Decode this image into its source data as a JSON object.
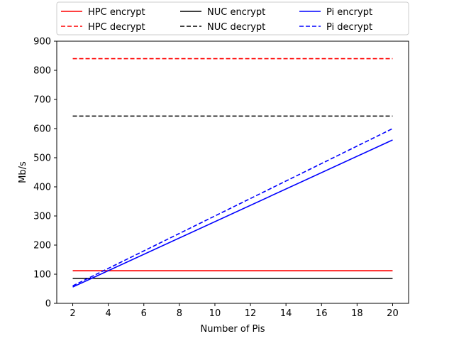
{
  "chart_data": {
    "type": "line",
    "xlabel": "Number of Pis",
    "ylabel": "Mb/s",
    "xlim": [
      1.1,
      20.9
    ],
    "ylim": [
      0,
      900
    ],
    "xticks": [
      2,
      4,
      6,
      8,
      10,
      12,
      14,
      16,
      18,
      20
    ],
    "yticks": [
      0,
      100,
      200,
      300,
      400,
      500,
      600,
      700,
      800,
      900
    ],
    "grid": false,
    "legend_position": "top, outside plot, 3 columns",
    "series": [
      {
        "name": "HPC encrypt",
        "color": "#ff0000",
        "dash": "solid",
        "x": [
          2,
          20
        ],
        "y": [
          112,
          112
        ]
      },
      {
        "name": "HPC decrypt",
        "color": "#ff0000",
        "dash": "dashed",
        "x": [
          2,
          20
        ],
        "y": [
          840,
          840
        ]
      },
      {
        "name": "NUC encrypt",
        "color": "#000000",
        "dash": "solid",
        "x": [
          2,
          20
        ],
        "y": [
          86,
          86
        ]
      },
      {
        "name": "NUC decrypt",
        "color": "#000000",
        "dash": "dashed",
        "x": [
          2,
          20
        ],
        "y": [
          643,
          643
        ]
      },
      {
        "name": "Pi encrypt",
        "color": "#0000ff",
        "dash": "solid",
        "x": [
          2,
          20
        ],
        "y": [
          56,
          561
        ]
      },
      {
        "name": "Pi decrypt",
        "color": "#0000ff",
        "dash": "dashed",
        "x": [
          2,
          20
        ],
        "y": [
          60,
          600
        ]
      }
    ]
  }
}
